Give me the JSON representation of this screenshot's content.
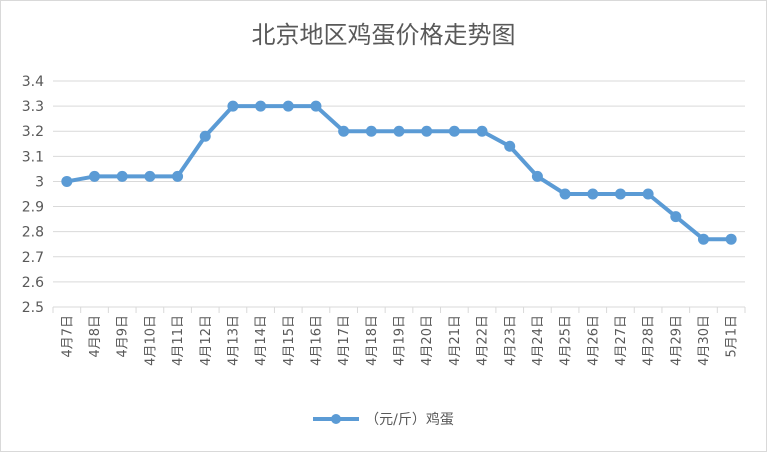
{
  "chart_data": {
    "type": "line",
    "title": "北京地区鸡蛋价格走势图",
    "categories": [
      "4月7日",
      "4月8日",
      "4月9日",
      "4月10日",
      "4月11日",
      "4月12日",
      "4月13日",
      "4月14日",
      "4月15日",
      "4月16日",
      "4月17日",
      "4月18日",
      "4月19日",
      "4月20日",
      "4月21日",
      "4月22日",
      "4月23日",
      "4月24日",
      "4月25日",
      "4月26日",
      "4月27日",
      "4月28日",
      "4月29日",
      "4月30日",
      "5月1日"
    ],
    "series": [
      {
        "name": "（元/斤）鸡蛋",
        "color": "#5b9bd5",
        "values": [
          3.0,
          3.02,
          3.02,
          3.02,
          3.02,
          3.18,
          3.3,
          3.3,
          3.3,
          3.3,
          3.2,
          3.2,
          3.2,
          3.2,
          3.2,
          3.2,
          3.14,
          3.02,
          2.95,
          2.95,
          2.95,
          2.95,
          2.86,
          2.77,
          2.77
        ]
      }
    ],
    "ylim": [
      2.5,
      3.4
    ],
    "yticks": [
      "2.5",
      "2.6",
      "2.7",
      "2.8",
      "2.9",
      "3",
      "3.1",
      "3.2",
      "3.3",
      "3.4"
    ],
    "grid": true,
    "legend_position": "bottom"
  }
}
